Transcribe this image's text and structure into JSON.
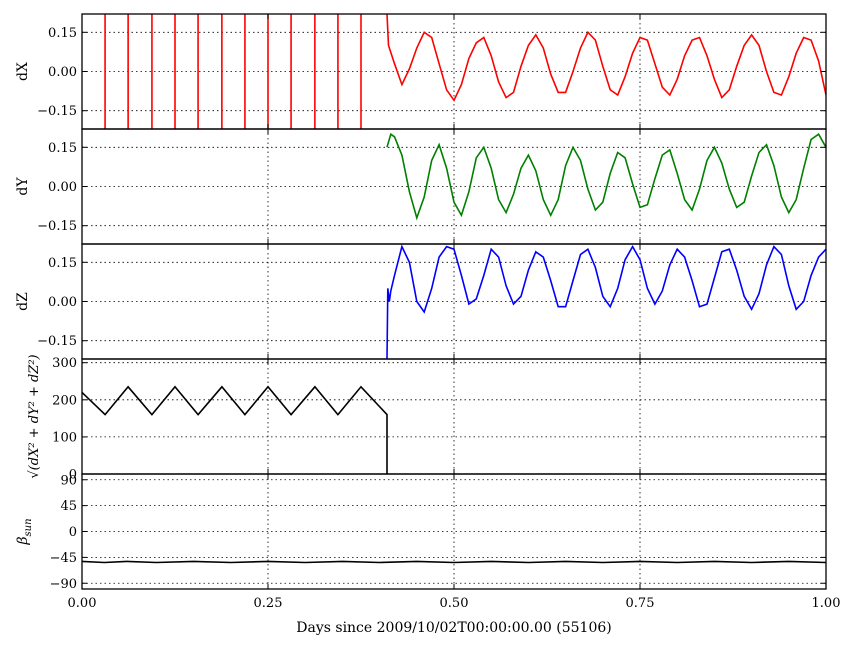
{
  "chart_data": {
    "type": "line",
    "xlabel": "Days since 2009/10/02T00:00:00.00 (55106)",
    "xlim": [
      0,
      1
    ],
    "xticks": [
      0.0,
      0.25,
      0.5,
      0.75,
      1.0
    ],
    "xtick_labels": [
      "0.00",
      "0.25",
      "0.50",
      "0.75",
      "1.00"
    ],
    "grid": true,
    "panels": [
      {
        "id": "dx",
        "ylabel": "dX",
        "color": "#ff0000",
        "ylim": [
          -0.22,
          0.22
        ],
        "yticks": [
          0.15,
          0.0,
          -0.15
        ],
        "ytick_labels": [
          "0.15",
          "0.00",
          "−0.15"
        ],
        "spikes_x": [
          0.031,
          0.062,
          0.094,
          0.125,
          0.156,
          0.188,
          0.219,
          0.25,
          0.281,
          0.313,
          0.344,
          0.375
        ],
        "series": {
          "x": [
            0.41,
            0.412,
            0.42,
            0.43,
            0.44,
            0.45,
            0.46,
            0.47,
            0.48,
            0.49,
            0.5,
            0.51,
            0.52,
            0.53,
            0.54,
            0.55,
            0.56,
            0.57,
            0.58,
            0.59,
            0.6,
            0.61,
            0.62,
            0.63,
            0.64,
            0.65,
            0.66,
            0.67,
            0.68,
            0.69,
            0.7,
            0.71,
            0.72,
            0.73,
            0.74,
            0.75,
            0.76,
            0.77,
            0.78,
            0.79,
            0.8,
            0.81,
            0.82,
            0.83,
            0.84,
            0.85,
            0.86,
            0.87,
            0.88,
            0.89,
            0.9,
            0.91,
            0.92,
            0.93,
            0.94,
            0.95,
            0.96,
            0.97,
            0.98,
            0.99,
            1.0
          ],
          "y": [
            0.22,
            0.1,
            0.03,
            -0.05,
            0.01,
            0.09,
            0.15,
            0.13,
            0.03,
            -0.07,
            -0.11,
            -0.05,
            0.05,
            0.11,
            0.13,
            0.06,
            -0.04,
            -0.1,
            -0.08,
            0.02,
            0.1,
            0.14,
            0.09,
            -0.01,
            -0.08,
            -0.08,
            0.0,
            0.09,
            0.15,
            0.12,
            0.02,
            -0.07,
            -0.09,
            -0.02,
            0.07,
            0.13,
            0.12,
            0.03,
            -0.06,
            -0.09,
            -0.03,
            0.06,
            0.12,
            0.13,
            0.06,
            -0.03,
            -0.1,
            -0.07,
            0.02,
            0.1,
            0.14,
            0.1,
            0.0,
            -0.08,
            -0.09,
            -0.02,
            0.07,
            0.13,
            0.12,
            0.04,
            -0.09
          ]
        }
      },
      {
        "id": "dy",
        "ylabel": "dY",
        "color": "#008000",
        "ylim": [
          -0.22,
          0.22
        ],
        "yticks": [
          0.15,
          0.0,
          -0.15
        ],
        "ytick_labels": [
          "0.15",
          "0.00",
          "−0.15"
        ],
        "series": {
          "x": [
            0.41,
            0.415,
            0.42,
            0.43,
            0.44,
            0.45,
            0.46,
            0.47,
            0.48,
            0.49,
            0.5,
            0.51,
            0.52,
            0.53,
            0.54,
            0.55,
            0.56,
            0.57,
            0.58,
            0.59,
            0.6,
            0.61,
            0.62,
            0.63,
            0.64,
            0.65,
            0.66,
            0.67,
            0.68,
            0.69,
            0.7,
            0.71,
            0.72,
            0.73,
            0.74,
            0.75,
            0.76,
            0.77,
            0.78,
            0.79,
            0.8,
            0.81,
            0.82,
            0.83,
            0.84,
            0.85,
            0.86,
            0.87,
            0.88,
            0.89,
            0.9,
            0.91,
            0.92,
            0.93,
            0.94,
            0.95,
            0.96,
            0.97,
            0.98,
            0.99,
            1.0
          ],
          "y": [
            0.15,
            0.2,
            0.19,
            0.12,
            -0.02,
            -0.12,
            -0.04,
            0.1,
            0.16,
            0.07,
            -0.06,
            -0.11,
            -0.02,
            0.11,
            0.15,
            0.07,
            -0.05,
            -0.1,
            -0.03,
            0.07,
            0.12,
            0.06,
            -0.05,
            -0.11,
            -0.05,
            0.08,
            0.15,
            0.1,
            -0.01,
            -0.09,
            -0.06,
            0.05,
            0.13,
            0.11,
            0.01,
            -0.08,
            -0.07,
            0.03,
            0.12,
            0.14,
            0.05,
            -0.05,
            -0.09,
            -0.01,
            0.1,
            0.15,
            0.09,
            -0.01,
            -0.08,
            -0.06,
            0.04,
            0.13,
            0.16,
            0.08,
            -0.04,
            -0.1,
            -0.05,
            0.07,
            0.18,
            0.2,
            0.15
          ]
        }
      },
      {
        "id": "dz",
        "ylabel": "dZ",
        "color": "#0000ff",
        "ylim": [
          -0.22,
          0.22
        ],
        "yticks": [
          0.15,
          0.0,
          -0.15
        ],
        "ytick_labels": [
          "0.15",
          "0.00",
          "−0.15"
        ],
        "series": {
          "x": [
            0.41,
            0.411,
            0.413,
            0.415,
            0.42,
            0.43,
            0.44,
            0.45,
            0.46,
            0.47,
            0.48,
            0.49,
            0.5,
            0.51,
            0.52,
            0.53,
            0.54,
            0.55,
            0.56,
            0.57,
            0.58,
            0.59,
            0.6,
            0.61,
            0.62,
            0.63,
            0.64,
            0.65,
            0.66,
            0.67,
            0.68,
            0.69,
            0.7,
            0.71,
            0.72,
            0.73,
            0.74,
            0.75,
            0.76,
            0.77,
            0.78,
            0.79,
            0.8,
            0.81,
            0.82,
            0.83,
            0.84,
            0.85,
            0.86,
            0.87,
            0.88,
            0.89,
            0.9,
            0.91,
            0.92,
            0.93,
            0.94,
            0.95,
            0.96,
            0.97,
            0.98,
            0.99,
            1.0
          ],
          "y": [
            -0.22,
            0.05,
            0.0,
            0.04,
            0.1,
            0.21,
            0.15,
            0.0,
            -0.04,
            0.05,
            0.17,
            0.21,
            0.2,
            0.1,
            -0.01,
            0.01,
            0.1,
            0.2,
            0.17,
            0.06,
            -0.01,
            0.02,
            0.12,
            0.19,
            0.17,
            0.08,
            -0.02,
            -0.02,
            0.08,
            0.18,
            0.2,
            0.13,
            0.02,
            -0.02,
            0.05,
            0.16,
            0.21,
            0.16,
            0.05,
            -0.01,
            0.04,
            0.14,
            0.2,
            0.17,
            0.08,
            -0.02,
            -0.01,
            0.09,
            0.19,
            0.2,
            0.12,
            0.02,
            -0.03,
            0.03,
            0.14,
            0.21,
            0.18,
            0.06,
            -0.03,
            0.0,
            0.1,
            0.17,
            0.2
          ]
        }
      },
      {
        "id": "mag",
        "ylabel": "√(dX² + dY² + dZ²)",
        "color": "#000000",
        "ylim": [
          0,
          310
        ],
        "yticks": [
          300,
          200,
          100,
          0
        ],
        "ytick_labels": [
          "300",
          "200",
          "100",
          "0"
        ],
        "series": {
          "x": [
            0.0,
            0.031,
            0.062,
            0.094,
            0.125,
            0.156,
            0.188,
            0.219,
            0.25,
            0.281,
            0.313,
            0.344,
            0.375,
            0.41,
            0.41
          ],
          "y": [
            220,
            160,
            235,
            160,
            235,
            160,
            235,
            160,
            235,
            160,
            235,
            160,
            235,
            160,
            0
          ]
        }
      },
      {
        "id": "beta",
        "ylabel": "βsun",
        "color": "#000000",
        "ylim": [
          -100,
          100
        ],
        "yticks": [
          90,
          45,
          0,
          -45,
          -90
        ],
        "ytick_labels": [
          "90",
          "45",
          "0",
          "−45",
          "−90"
        ],
        "series": {
          "x": [
            0.0,
            0.03,
            0.06,
            0.1,
            0.15,
            0.2,
            0.25,
            0.3,
            0.35,
            0.4,
            0.45,
            0.5,
            0.55,
            0.6,
            0.65,
            0.7,
            0.75,
            0.8,
            0.85,
            0.9,
            0.95,
            1.0
          ],
          "y": [
            -52,
            -54,
            -52,
            -54,
            -52,
            -54,
            -52,
            -54,
            -52,
            -54,
            -52,
            -54,
            -52,
            -54,
            -52,
            -54,
            -52,
            -54,
            -52,
            -54,
            -52,
            -54
          ]
        }
      }
    ]
  }
}
